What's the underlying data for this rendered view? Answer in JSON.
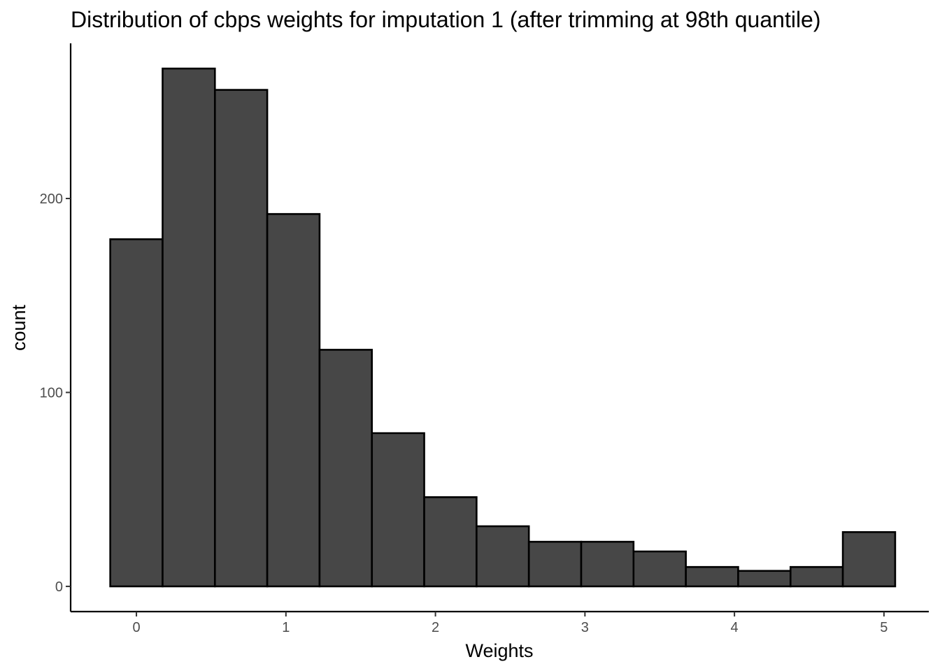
{
  "chart_data": {
    "type": "bar",
    "title": "Distribution of cbps weights for imputation 1 (after trimming at 98th quantile)",
    "xlabel": "Weights",
    "ylabel": "count",
    "xlim": [
      -0.44,
      5.3
    ],
    "ylim": [
      -13,
      280
    ],
    "x_ticks": [
      0,
      1,
      2,
      3,
      4,
      5
    ],
    "y_ticks": [
      0,
      100,
      200
    ],
    "bins": [
      {
        "x0": -0.175,
        "x1": 0.175,
        "count": 179
      },
      {
        "x0": 0.175,
        "x1": 0.525,
        "count": 267
      },
      {
        "x0": 0.525,
        "x1": 0.875,
        "count": 256
      },
      {
        "x0": 0.875,
        "x1": 1.225,
        "count": 192
      },
      {
        "x0": 1.225,
        "x1": 1.575,
        "count": 122
      },
      {
        "x0": 1.575,
        "x1": 1.925,
        "count": 79
      },
      {
        "x0": 1.925,
        "x1": 2.275,
        "count": 46
      },
      {
        "x0": 2.275,
        "x1": 2.625,
        "count": 31
      },
      {
        "x0": 2.625,
        "x1": 2.975,
        "count": 23
      },
      {
        "x0": 2.975,
        "x1": 3.325,
        "count": 23
      },
      {
        "x0": 3.325,
        "x1": 3.675,
        "count": 18
      },
      {
        "x0": 3.675,
        "x1": 4.025,
        "count": 10
      },
      {
        "x0": 4.025,
        "x1": 4.375,
        "count": 8
      },
      {
        "x0": 4.375,
        "x1": 4.725,
        "count": 10
      },
      {
        "x0": 4.725,
        "x1": 5.075,
        "count": 28
      }
    ],
    "grid": false,
    "colors": {
      "bar_fill": "#474747",
      "bar_stroke": "#000000",
      "axis": "#000000",
      "tick_text": "#4d4d4d"
    }
  }
}
